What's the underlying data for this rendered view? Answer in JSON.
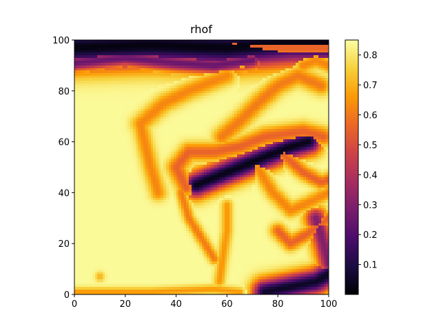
{
  "chart_data": {
    "type": "heatmap",
    "title": "rhof",
    "xlabel": "",
    "ylabel": "",
    "xlim": [
      0,
      100
    ],
    "ylim": [
      0,
      100
    ],
    "x_ticks": [
      0,
      20,
      40,
      60,
      80,
      100
    ],
    "y_ticks": [
      0,
      20,
      40,
      60,
      80,
      100
    ],
    "x_tick_labels": [
      "0",
      "20",
      "40",
      "60",
      "80",
      "100"
    ],
    "y_tick_labels": [
      "0",
      "20",
      "40",
      "60",
      "80",
      "100"
    ],
    "colormap": "inferno",
    "value_range": [
      0.0,
      0.85
    ],
    "colorbar_ticks": [
      0.1,
      0.2,
      0.3,
      0.4,
      0.5,
      0.6,
      0.7,
      0.8
    ],
    "colorbar_tick_labels": [
      "0.1",
      "0.2",
      "0.3",
      "0.4",
      "0.5",
      "0.6",
      "0.7",
      "0.8"
    ],
    "field_description": "background value ~0.84 (pale yellow) with curved orange filaments and dark bands",
    "background_value": 0.84,
    "features": [
      {
        "kind": "band",
        "value": 0.02,
        "points": [
          [
            0,
            97
          ],
          [
            30,
            98
          ],
          [
            60,
            97
          ],
          [
            85,
            99
          ],
          [
            100,
            99
          ]
        ],
        "width": 6
      },
      {
        "kind": "band",
        "value": 0.25,
        "points": [
          [
            0,
            91
          ],
          [
            20,
            93
          ],
          [
            40,
            91
          ],
          [
            55,
            90
          ],
          [
            70,
            92
          ]
        ],
        "width": 2.5
      },
      {
        "kind": "band",
        "value": 0.55,
        "points": [
          [
            62,
            98
          ],
          [
            80,
            97
          ],
          [
            100,
            97
          ]
        ],
        "width": 3
      },
      {
        "kind": "band",
        "value": 0.03,
        "points": [
          [
            48,
            43
          ],
          [
            55,
            46
          ],
          [
            65,
            50
          ],
          [
            75,
            54
          ],
          [
            85,
            58
          ],
          [
            92,
            60
          ]
        ],
        "width": 3.5
      },
      {
        "kind": "band",
        "value": 0.62,
        "points": [
          [
            26,
            67
          ],
          [
            35,
            75
          ],
          [
            45,
            80
          ],
          [
            55,
            84
          ],
          [
            60,
            86
          ]
        ],
        "width": 2.5
      },
      {
        "kind": "band",
        "value": 0.62,
        "points": [
          [
            26,
            67
          ],
          [
            28,
            58
          ],
          [
            30,
            50
          ],
          [
            33,
            40
          ]
        ],
        "width": 2.2
      },
      {
        "kind": "band",
        "value": 0.6,
        "points": [
          [
            58,
            62
          ],
          [
            65,
            68
          ],
          [
            72,
            75
          ],
          [
            80,
            82
          ],
          [
            88,
            86
          ],
          [
            97,
            82
          ]
        ],
        "width": 2.5
      },
      {
        "kind": "band",
        "value": 0.62,
        "points": [
          [
            90,
            90
          ],
          [
            95,
            92
          ],
          [
            100,
            90
          ]
        ],
        "width": 2
      },
      {
        "kind": "band",
        "value": 0.55,
        "points": [
          [
            44,
            42
          ],
          [
            40,
            50
          ],
          [
            45,
            56
          ],
          [
            55,
            56
          ],
          [
            65,
            58
          ],
          [
            75,
            62
          ],
          [
            90,
            64
          ],
          [
            98,
            62
          ]
        ],
        "width": 2.5
      },
      {
        "kind": "band",
        "value": 0.6,
        "points": [
          [
            42,
            40
          ],
          [
            45,
            30
          ],
          [
            50,
            22
          ],
          [
            55,
            14
          ]
        ],
        "width": 1.5
      },
      {
        "kind": "band",
        "value": 0.65,
        "points": [
          [
            60,
            35
          ],
          [
            60,
            25
          ],
          [
            58,
            12
          ],
          [
            57,
            5
          ]
        ],
        "width": 1.5
      },
      {
        "kind": "band",
        "value": 0.62,
        "points": [
          [
            72,
            50
          ],
          [
            78,
            40
          ],
          [
            85,
            33
          ],
          [
            92,
            36
          ],
          [
            100,
            40
          ]
        ],
        "width": 2
      },
      {
        "kind": "band",
        "value": 0.55,
        "points": [
          [
            82,
            55
          ],
          [
            90,
            48
          ],
          [
            97,
            44
          ],
          [
            100,
            45
          ]
        ],
        "width": 2
      },
      {
        "kind": "band",
        "value": 0.55,
        "points": [
          [
            80,
            25
          ],
          [
            85,
            20
          ],
          [
            92,
            24
          ],
          [
            100,
            30
          ]
        ],
        "width": 2
      },
      {
        "kind": "band",
        "value": 0.3,
        "points": [
          [
            95,
            30
          ],
          [
            98,
            20
          ],
          [
            100,
            12
          ]
        ],
        "width": 3
      },
      {
        "kind": "band",
        "value": 0.05,
        "points": [
          [
            75,
            1
          ],
          [
            85,
            3
          ],
          [
            95,
            5
          ],
          [
            100,
            8
          ]
        ],
        "width": 3.5
      },
      {
        "kind": "band",
        "value": 0.65,
        "points": [
          [
            0,
            1
          ],
          [
            30,
            1
          ],
          [
            55,
            2
          ],
          [
            65,
            1
          ]
        ],
        "width": 1.2
      },
      {
        "kind": "blob",
        "value": 0.65,
        "center": [
          66,
          90
        ],
        "radius": 1.3
      },
      {
        "kind": "blob",
        "value": 0.7,
        "center": [
          10,
          7
        ],
        "radius": 1.3
      }
    ]
  },
  "colors": {
    "colormap_stops": [
      "#000004",
      "#1b0c41",
      "#4a0c6b",
      "#781c6d",
      "#a52c60",
      "#cf4446",
      "#ed6925",
      "#fb9b06",
      "#f7d13d",
      "#fcffa4"
    ]
  }
}
